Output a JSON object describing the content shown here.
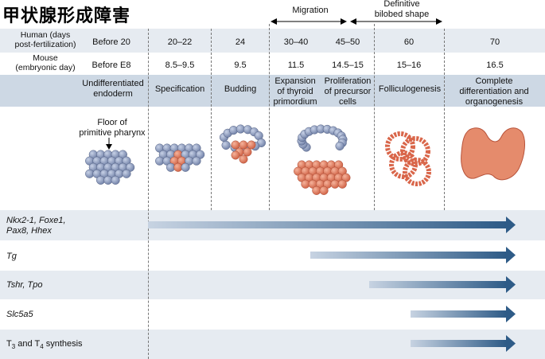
{
  "title": "甲状腺形成障害",
  "top_labels": {
    "migration": "Migration",
    "bilobed": "Definitive\nbilobed shape"
  },
  "human": {
    "label": "Human (days\npost-fertilization)",
    "values": [
      "Before 20",
      "20–22",
      "24",
      "30–40",
      "45–50",
      "60",
      "70"
    ]
  },
  "mouse": {
    "label": "Mouse\n(embryonic day)",
    "values": [
      "Before E8",
      "8.5–9.5",
      "9.5",
      "11.5",
      "14.5–15",
      "15–16",
      "16.5"
    ]
  },
  "stages": [
    "Undifferentiated\nendoderm",
    "Specification",
    "Budding",
    "Expansion\nof thyroid\nprimordium",
    "Proliferation\nof precursor\ncells",
    "Folliculogenesis",
    "Complete\ndifferentiation and\norganogenesis"
  ],
  "floor_label": "Floor of\nprimitive pharynx",
  "genes": [
    {
      "label": "Nkx2-1, Foxe1,\nPax8, Hhex",
      "start_stage": "Specification"
    },
    {
      "label": "Tg",
      "start_stage": "Proliferation of precursor cells"
    },
    {
      "label": "Tshr, Tpo",
      "start_stage": "Proliferation of precursor cells"
    },
    {
      "label": "Slc5a5",
      "start_stage": "Folliculogenesis"
    },
    {
      "label": "T3 and T4 synthesis",
      "start_stage": "Folliculogenesis"
    }
  ],
  "colors": {
    "blue_cell": "#8e9dbf",
    "orange_cell": "#e07b5d",
    "arrow": "#2e5b87",
    "band": "#e2e8ef",
    "stage_band": "#cbd6e2"
  }
}
